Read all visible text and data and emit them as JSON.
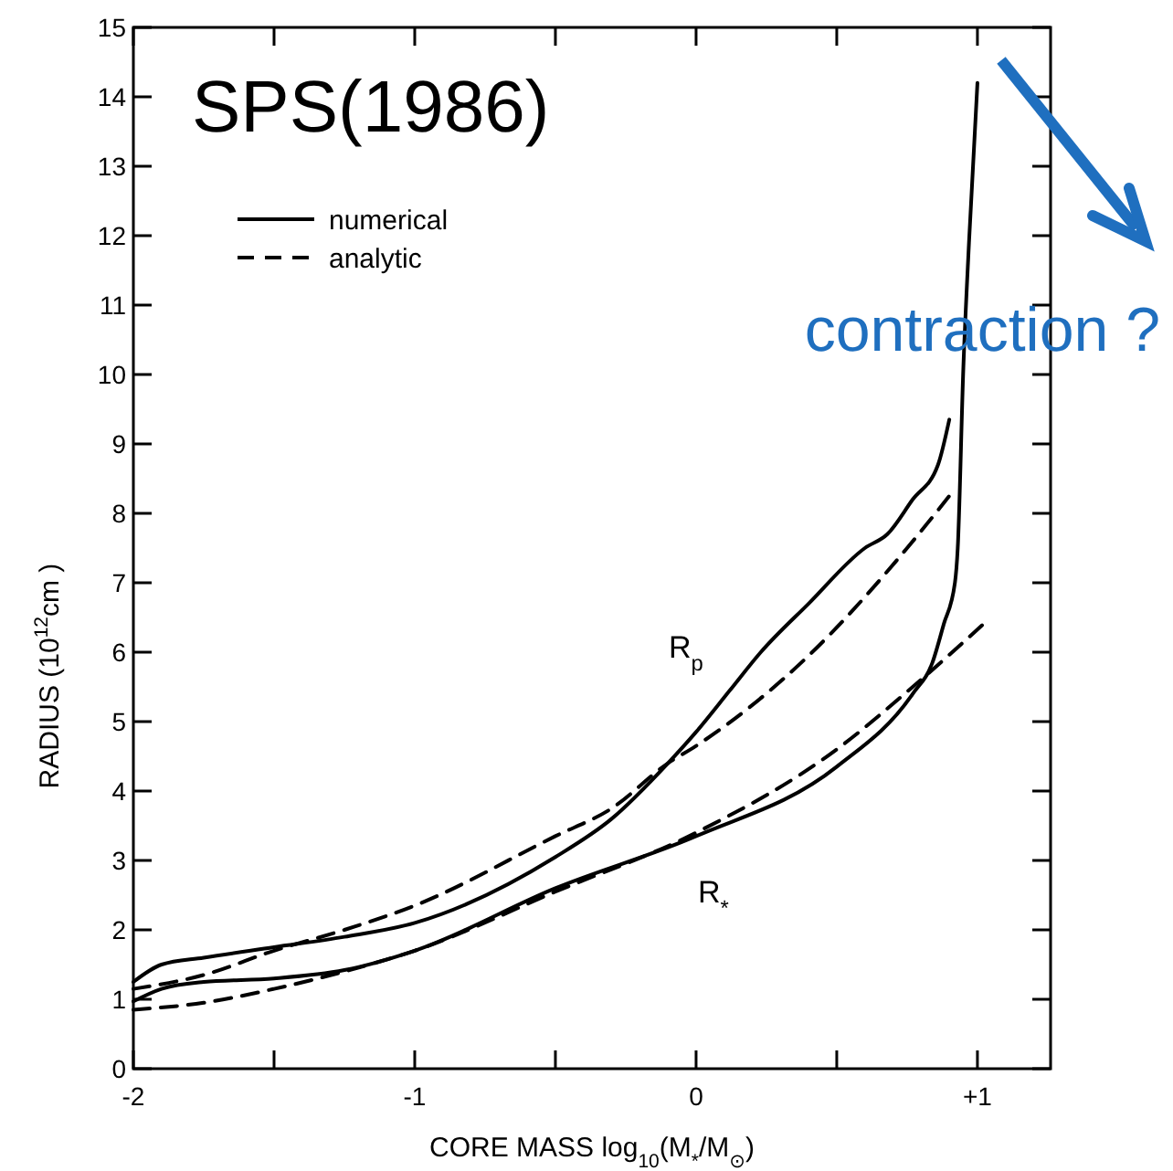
{
  "chart_data": {
    "type": "line",
    "title": "SPS(1986)",
    "xlabel": "CORE MASS   log$_{10}$(M$_{*}$/M$_{⊙}$)",
    "ylabel": "RADIUS  (10$^{12}$cm )",
    "xlim": [
      -2,
      1.26
    ],
    "ylim": [
      0,
      15
    ],
    "xticks": [
      -2,
      {
        "value": -1.5,
        "label": null
      },
      -1,
      {
        "value": -0.5,
        "label": null
      },
      0,
      {
        "value": 0.5,
        "label": null
      },
      {
        "value": 1,
        "label": "+1"
      }
    ],
    "yticks": [
      0,
      1,
      2,
      3,
      4,
      5,
      6,
      7,
      8,
      9,
      10,
      11,
      12,
      13,
      14,
      15
    ],
    "legend": "top left",
    "grid": false,
    "series": [
      {
        "name": "numerical",
        "color": "#000000",
        "line_style": "solid",
        "x": [
          -2,
          -1.9,
          -1.75,
          -1.5,
          -1.25,
          -1,
          -0.5,
          -0.3,
          -0.1,
          0,
          0.12,
          0.23,
          0.4,
          0.6,
          0.68,
          0.77,
          0.86,
          0.9
        ],
        "values": [
          1.25,
          1.5,
          1.6,
          1.75,
          1.9,
          2.1,
          3.05,
          3.6,
          4.4,
          4.85,
          5.45,
          6.0,
          6.7,
          7.5,
          7.7,
          8.2,
          8.7,
          9.35
        ]
      },
      {
        "name": "analytic",
        "color": "#000000",
        "line_style": "dashed",
        "x": [
          -2,
          -1.75,
          -1.5,
          -1.25,
          -1,
          -0.5,
          -0.3,
          -0.1,
          0,
          0.4,
          0.75,
          0.9
        ],
        "values": [
          1.15,
          1.35,
          1.7,
          2.0,
          2.35,
          3.35,
          3.75,
          4.4,
          4.65,
          5.95,
          7.5,
          8.25
        ]
      },
      {
        "color": "#000000",
        "line_style": "solid",
        "x": [
          -2,
          -1.9,
          -1.75,
          -1.5,
          -1.25,
          -1,
          -0.5,
          0,
          0.5,
          0.77,
          0.84,
          0.88,
          0.92,
          0.93,
          0.95,
          0.97,
          1.0
        ],
        "values": [
          0.97,
          1.15,
          1.25,
          1.3,
          1.42,
          1.7,
          2.6,
          3.35,
          4.35,
          5.4,
          5.85,
          6.4,
          7.0,
          7.5,
          10.1,
          11.9,
          14.2
        ]
      },
      {
        "color": "#000000",
        "line_style": "dashed",
        "x": [
          -2,
          -1.75,
          -1.5,
          -1.25,
          -1,
          -0.5,
          0,
          0.5,
          0.77,
          1.02
        ],
        "values": [
          0.85,
          0.95,
          1.15,
          1.4,
          1.7,
          2.55,
          3.4,
          4.6,
          5.5,
          6.4
        ]
      }
    ],
    "annotations": [
      "R$_{p}$",
      "R$_{*}$",
      "contraction ?"
    ]
  }
}
